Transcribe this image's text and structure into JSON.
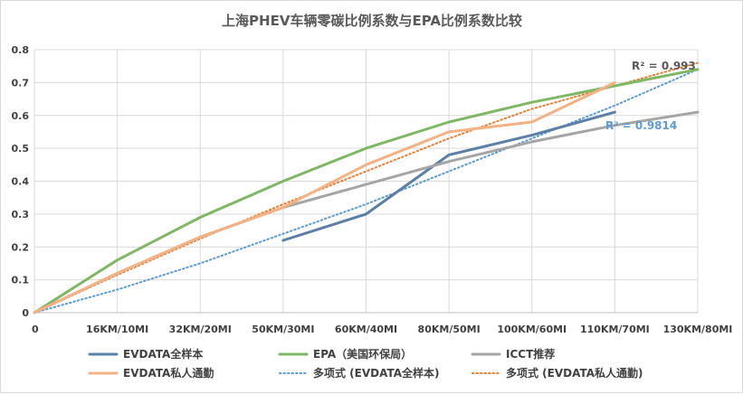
{
  "chart_data": {
    "type": "line",
    "title": "上海PHEV车辆零碳比例系数与EPA比例系数比较",
    "categories": [
      "0",
      "16KM/10MI",
      "32KM/20MI",
      "50KM/30MI",
      "60KM/40MI",
      "80KM/50MI",
      "100KM/60MI",
      "110KM/70MI",
      "130KM/80MI"
    ],
    "ylim": [
      0,
      0.8
    ],
    "yticks": [
      "0",
      "0.1",
      "0.2",
      "0.3",
      "0.4",
      "0.5",
      "0.6",
      "0.7",
      "0.8"
    ],
    "grid": true,
    "legend_position": "bottom",
    "series": [
      {
        "name": "EVDATA全样本",
        "color": "#5b7fa6",
        "style": "solid",
        "values": [
          null,
          null,
          null,
          0.22,
          0.3,
          0.48,
          0.54,
          0.61,
          null
        ]
      },
      {
        "name": "EPA（美国环保局）",
        "color": "#7fb865",
        "style": "solid",
        "values": [
          0,
          0.16,
          0.29,
          0.4,
          0.5,
          0.58,
          0.64,
          0.69,
          0.74
        ]
      },
      {
        "name": "ICCT推荐",
        "color": "#a5a5a5",
        "style": "solid",
        "values": [
          0,
          0.12,
          0.23,
          0.32,
          0.39,
          0.46,
          0.52,
          0.57,
          0.61
        ]
      },
      {
        "name": "EVDATA私人通勤",
        "color": "#f4b183",
        "style": "solid",
        "values": [
          0,
          0.12,
          0.23,
          0.32,
          0.45,
          0.55,
          0.58,
          0.7,
          null
        ]
      },
      {
        "name": "多项式 (EVDATA全样本)",
        "color": "#5b9bd5",
        "style": "dotted",
        "values": [
          0,
          0.07,
          0.15,
          0.24,
          0.33,
          0.43,
          0.53,
          0.63,
          0.74
        ]
      },
      {
        "name": "多项式 (EVDATA私人通勤)",
        "color": "#ed7d31",
        "style": "dotted",
        "values": [
          0,
          0.115,
          0.225,
          0.33,
          0.43,
          0.53,
          0.62,
          0.69,
          0.76
        ]
      }
    ],
    "annotations": [
      {
        "text": "R² = 0.993",
        "color": "#595959"
      },
      {
        "text": "R² = 0.9814",
        "color": "#5b9bd5"
      }
    ]
  }
}
